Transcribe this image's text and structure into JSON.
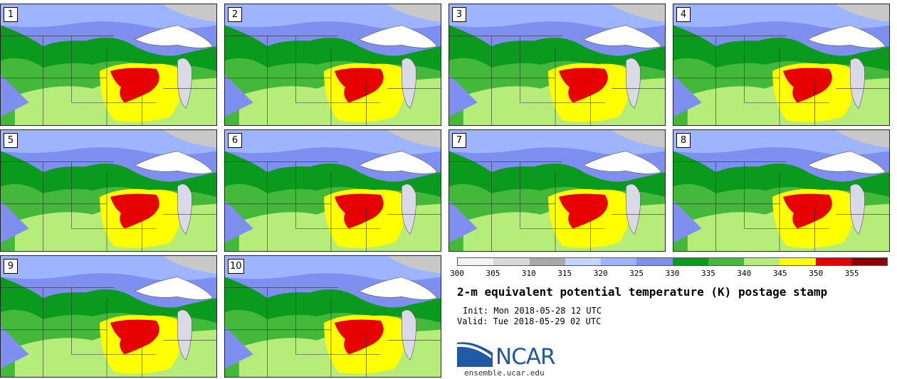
{
  "stamps": [
    {
      "label": "1"
    },
    {
      "label": "2"
    },
    {
      "label": "3"
    },
    {
      "label": "4"
    },
    {
      "label": "5"
    },
    {
      "label": "6"
    },
    {
      "label": "7"
    },
    {
      "label": "8"
    },
    {
      "label": "9"
    },
    {
      "label": "10"
    }
  ],
  "colorbar": {
    "ticks": [
      "300",
      "305",
      "310",
      "315",
      "320",
      "325",
      "330",
      "335",
      "340",
      "345",
      "350",
      "355"
    ],
    "colors": [
      "#f2f2f2",
      "#d9d9d9",
      "#a8a8a8",
      "#c4d4ff",
      "#9fb4ff",
      "#7f8ff0",
      "#0a9a1e",
      "#43b83a",
      "#b6ec7a",
      "#ffff00",
      "#e60000",
      "#8b0000"
    ]
  },
  "title": "2-m equivalent potential temperature (K) postage stamp",
  "init": "Init: Mon 2018-05-28 12 UTC",
  "valid": "Valid: Tue 2018-05-29 02 UTC",
  "logo": {
    "text": "NCAR",
    "icon": "ncar-logo-icon",
    "color": "#1f5aa6"
  },
  "website": "ensemble.ucar.edu"
}
